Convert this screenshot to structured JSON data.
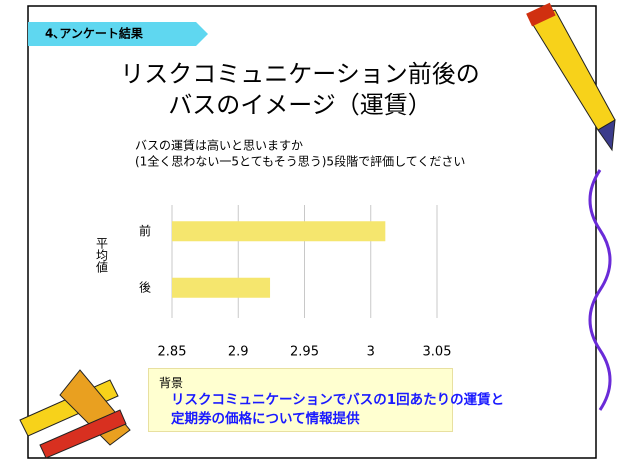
{
  "slide": {
    "tag": "4､アンケート結果",
    "title": [
      "リスクコミュニケーション前後の",
      "バスのイメージ（運賃）"
    ],
    "question": [
      "バスの運賃は高いと思いますか",
      "(1全く思わない一5とてもそう思う)5段階で評価してください"
    ],
    "note_heading": "背景",
    "note_text": "リスクコミュニケーションでバスの1回あたりの運賃と定期券の価格について情報提供"
  },
  "chart_data": {
    "type": "bar",
    "orientation": "horizontal",
    "ylabel": "平均値",
    "categories": [
      "前",
      "後"
    ],
    "values": [
      3.011,
      2.924
    ],
    "color": "#f5e66e",
    "xlim": [
      2.85,
      3.05
    ],
    "xticks": [
      2.85,
      2.9,
      2.95,
      3,
      3.05
    ],
    "grid": true
  }
}
